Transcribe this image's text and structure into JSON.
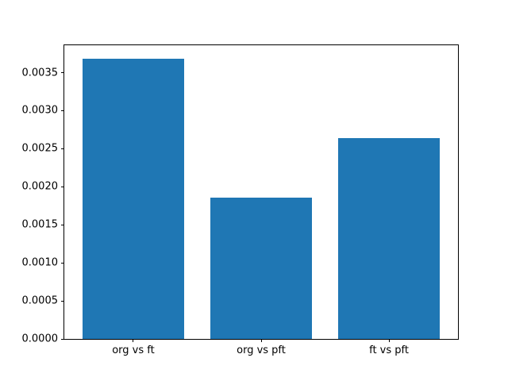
{
  "chart_data": {
    "type": "bar",
    "categories": [
      "org vs ft",
      "org vs pft",
      "ft vs pft"
    ],
    "values": [
      0.00368,
      0.00186,
      0.00264
    ],
    "title": "",
    "xlabel": "",
    "ylabel": "",
    "ylim": [
      0,
      0.00386
    ],
    "yticks": [
      {
        "value": 0.0,
        "label": "0.0000"
      },
      {
        "value": 0.0005,
        "label": "0.0005"
      },
      {
        "value": 0.001,
        "label": "0.0010"
      },
      {
        "value": 0.0015,
        "label": "0.0015"
      },
      {
        "value": 0.002,
        "label": "0.0020"
      },
      {
        "value": 0.0025,
        "label": "0.0025"
      },
      {
        "value": 0.003,
        "label": "0.0030"
      },
      {
        "value": 0.0035,
        "label": "0.0035"
      }
    ],
    "bar_color": "#1f77b4",
    "axis_color": "#000000",
    "background_color": "#ffffff",
    "grid": false,
    "legend": null
  }
}
